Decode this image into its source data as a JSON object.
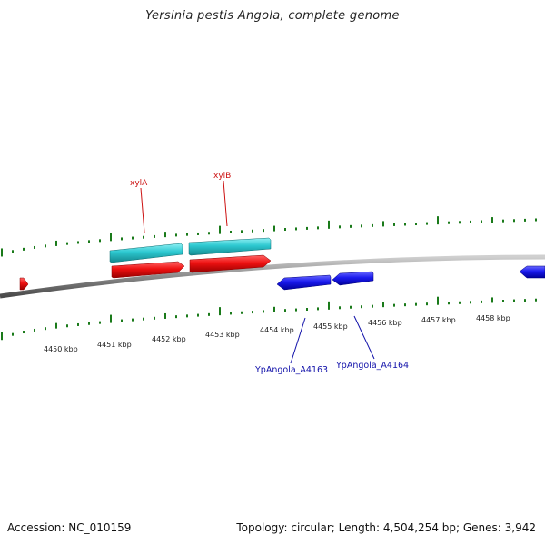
{
  "title": "Yersinia pestis Angola, complete genome",
  "footer": {
    "accession": "Accession: NC_010159",
    "summary": "Topology: circular; Length: 4,504,254 bp; Genes: 3,942"
  },
  "scale_labels": [
    "4450 kbp",
    "4451 kbp",
    "4452 kbp",
    "4453 kbp",
    "4454 kbp",
    "4455 kbp",
    "4456 kbp",
    "4457 kbp",
    "4458 kbp"
  ],
  "genes": [
    {
      "name": "xylA",
      "strand": "+",
      "label_color": "#cc1111"
    },
    {
      "name": "xylB",
      "strand": "+",
      "label_color": "#cc1111"
    },
    {
      "name": "YpAngola_A4163",
      "strand": "-",
      "label_color": "#1111aa"
    },
    {
      "name": "YpAngola_A4164",
      "strand": "-",
      "label_color": "#1111aa"
    }
  ],
  "colors": {
    "forward_gene": "#e8101a",
    "reverse_gene": "#1a1ae0",
    "cog_highlight": "#2cc8d0",
    "tick": "#1a7a1a",
    "backbone": "#8a8a8a"
  }
}
